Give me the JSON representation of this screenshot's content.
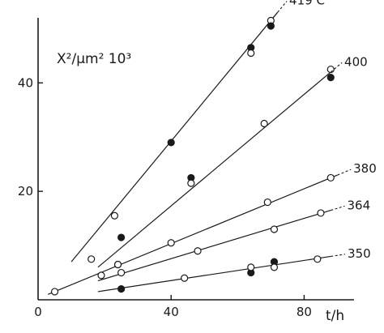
{
  "chart_data": {
    "type": "scatter",
    "title": "",
    "xlabel": "t/h",
    "ylabel": "X²/μm² 10³",
    "xlim": [
      0,
      95
    ],
    "ylim": [
      0,
      52
    ],
    "x_ticks": [
      0,
      40,
      80
    ],
    "y_ticks": [
      20,
      40
    ],
    "grid": false,
    "legend": "none",
    "series": [
      {
        "name": "419 C",
        "fit": [
          [
            10,
            7
          ],
          [
            72,
            53
          ]
        ],
        "points": [
          {
            "x": 16,
            "y": 7.5,
            "filled": false
          },
          {
            "x": 23,
            "y": 15.5,
            "filled": false
          },
          {
            "x": 40,
            "y": 29,
            "filled": true
          },
          {
            "x": 64,
            "y": 46.5,
            "filled": true
          },
          {
            "x": 64,
            "y": 45.5,
            "filled": false
          },
          {
            "x": 70,
            "y": 51.5,
            "filled": false
          },
          {
            "x": 70,
            "y": 50.5,
            "filled": true
          }
        ]
      },
      {
        "name": "400",
        "fit": [
          [
            18,
            6
          ],
          [
            88,
            42
          ]
        ],
        "points": [
          {
            "x": 24,
            "y": 6.5,
            "filled": false
          },
          {
            "x": 25,
            "y": 11.5,
            "filled": true
          },
          {
            "x": 46,
            "y": 22.5,
            "filled": true
          },
          {
            "x": 46,
            "y": 21.5,
            "filled": false
          },
          {
            "x": 68,
            "y": 32.5,
            "filled": false
          },
          {
            "x": 88,
            "y": 42.5,
            "filled": false
          },
          {
            "x": 88,
            "y": 41,
            "filled": true
          }
        ]
      },
      {
        "name": "380",
        "fit": [
          [
            3,
            1
          ],
          [
            90,
            23
          ]
        ],
        "points": [
          {
            "x": 5,
            "y": 1.5,
            "filled": false
          },
          {
            "x": 24,
            "y": 6.5,
            "filled": false
          },
          {
            "x": 40,
            "y": 10.5,
            "filled": false
          },
          {
            "x": 69,
            "y": 18,
            "filled": false
          },
          {
            "x": 88,
            "y": 22.5,
            "filled": false
          }
        ]
      },
      {
        "name": "364",
        "fit": [
          [
            18,
            3.5
          ],
          [
            88,
            16.5
          ]
        ],
        "points": [
          {
            "x": 19,
            "y": 4.5,
            "filled": false
          },
          {
            "x": 25,
            "y": 5,
            "filled": false
          },
          {
            "x": 48,
            "y": 9,
            "filled": false
          },
          {
            "x": 71,
            "y": 13,
            "filled": false
          },
          {
            "x": 85,
            "y": 16,
            "filled": false
          }
        ]
      },
      {
        "name": "350",
        "fit": [
          [
            18,
            1.5
          ],
          [
            88,
            8
          ]
        ],
        "points": [
          {
            "x": 25,
            "y": 2,
            "filled": true
          },
          {
            "x": 44,
            "y": 4,
            "filled": false
          },
          {
            "x": 64,
            "y": 5,
            "filled": true
          },
          {
            "x": 64,
            "y": 6,
            "filled": false
          },
          {
            "x": 71,
            "y": 7,
            "filled": true
          },
          {
            "x": 71,
            "y": 6,
            "filled": false
          },
          {
            "x": 84,
            "y": 7.5,
            "filled": false
          }
        ]
      }
    ]
  }
}
